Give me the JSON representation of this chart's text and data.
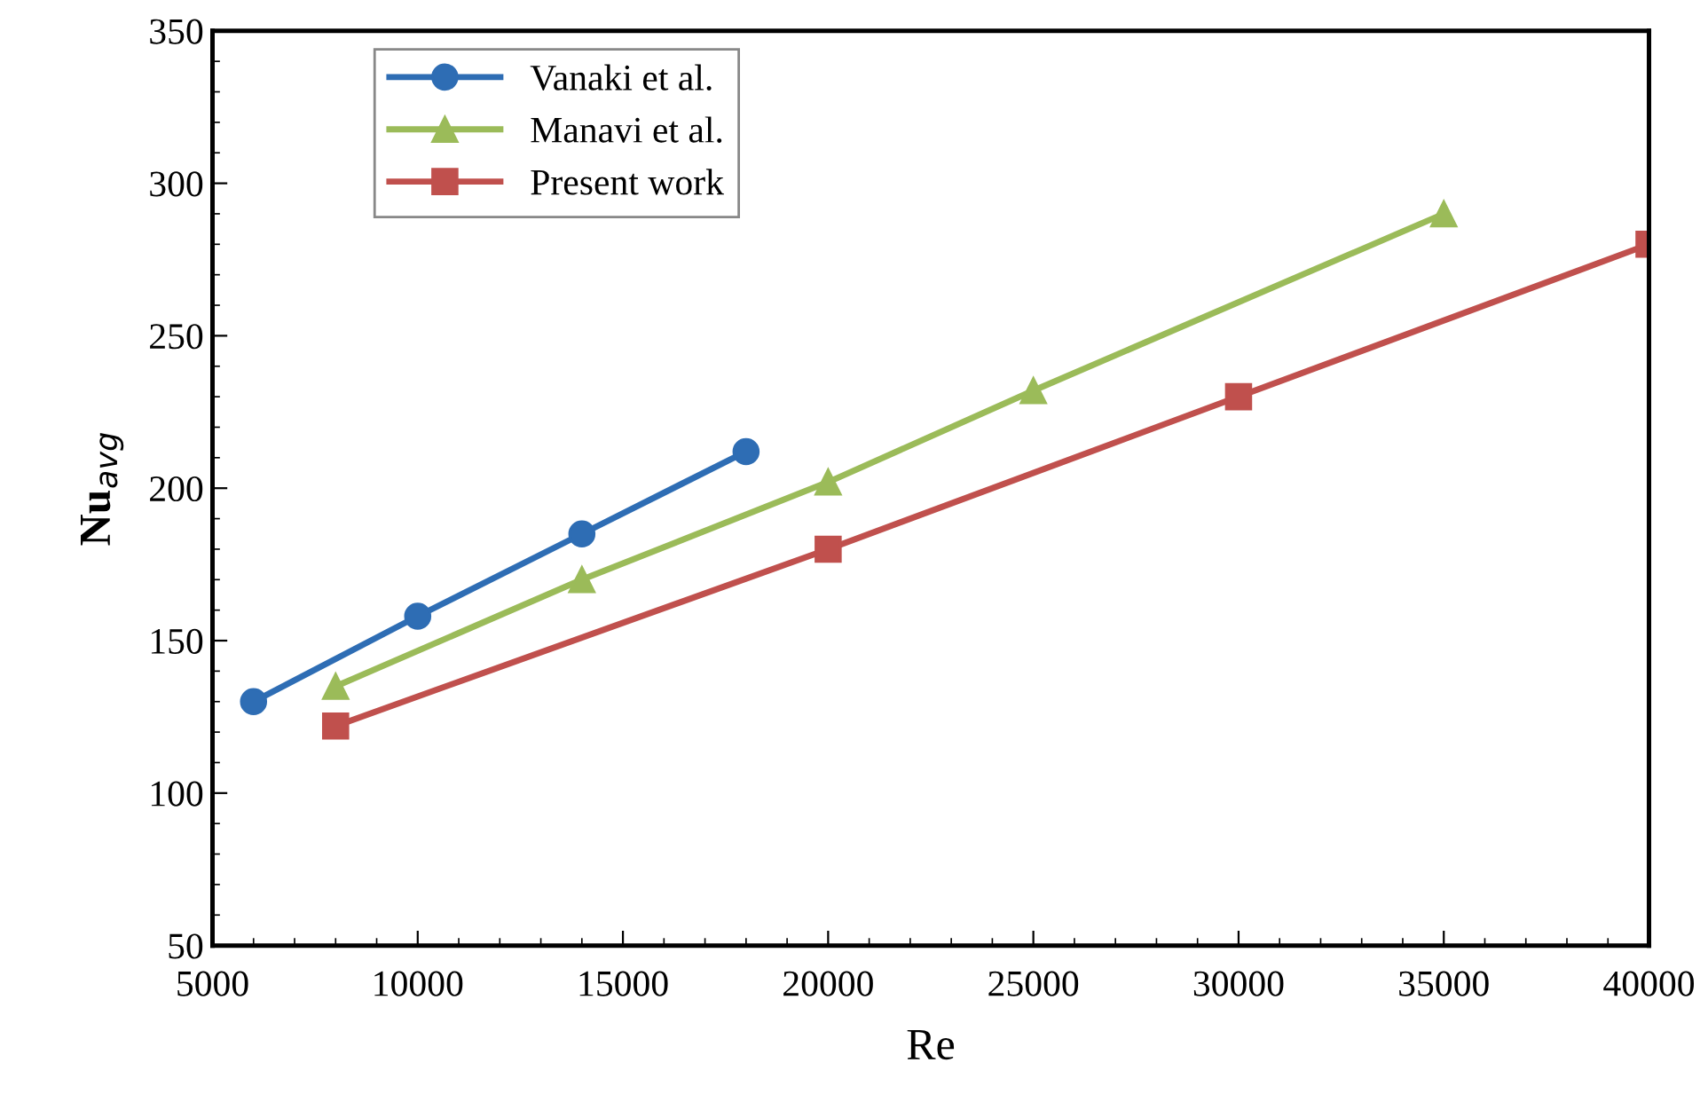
{
  "chart_data": {
    "type": "line",
    "xlabel": "Re",
    "ylabel": "Nu$_{avg}$",
    "xlim": [
      5000,
      40000
    ],
    "xticks": [
      5000,
      10000,
      15000,
      20000,
      25000,
      30000,
      35000,
      40000
    ],
    "ylim": [
      50,
      350
    ],
    "yticks": [
      50,
      100,
      150,
      200,
      250,
      300,
      350
    ],
    "grid": false,
    "legend": "top left",
    "series": [
      {
        "name": "Vanaki et al.",
        "color": "#2e6db4",
        "marker": "circle",
        "x": [
          6000,
          10000,
          14000,
          18000
        ],
        "values": [
          130,
          158,
          185,
          212
        ]
      },
      {
        "name": "Manavi et al.",
        "color": "#9bbb59",
        "marker": "triangle",
        "x": [
          8000,
          14000,
          20000,
          25000,
          35000
        ],
        "values": [
          135,
          170,
          202,
          232,
          290
        ]
      },
      {
        "name": "Present work",
        "color": "#c0504d",
        "marker": "square",
        "x": [
          8000,
          20000,
          30000,
          40000
        ],
        "values": [
          122,
          180,
          230,
          280
        ]
      }
    ]
  }
}
